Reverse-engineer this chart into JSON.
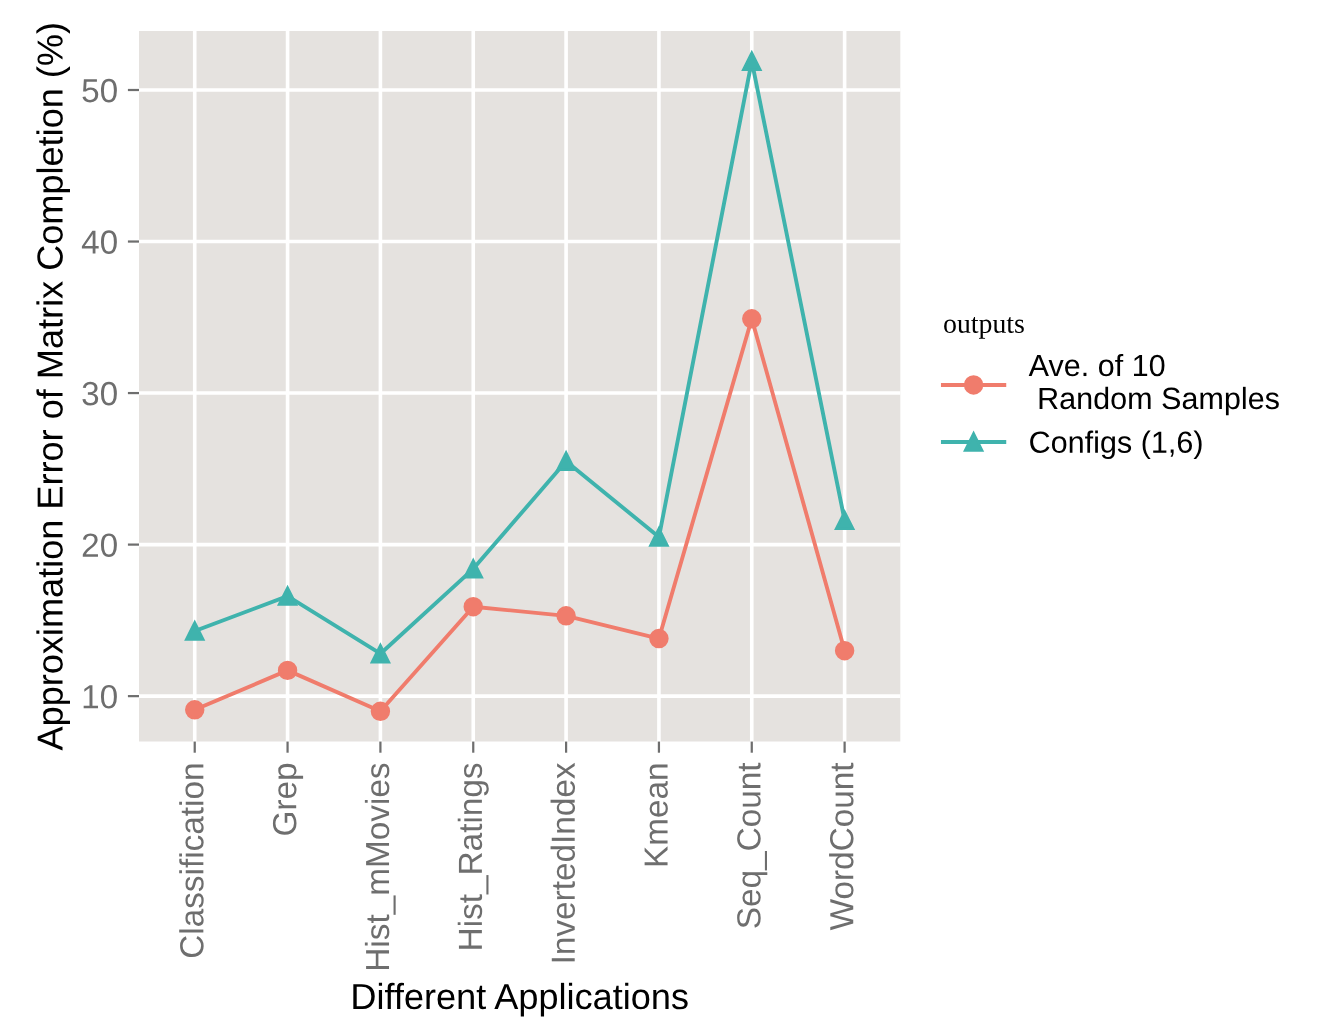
{
  "chart_data": {
    "type": "line",
    "xlabel": "Different Applications",
    "ylabel": "Approximation Error of Matrix Completion (%)",
    "legend_title": "outputs",
    "categories": [
      "Classification",
      "Grep",
      "Hist_mMovies",
      "Hist_Ratings",
      "InvertedIndex",
      "Kmean",
      "Seq_Count",
      "WordCount"
    ],
    "series": [
      {
        "name": "Ave. of 10\n Random Samples",
        "color": "#f07c6c",
        "marker": "circle",
        "values": [
          9.1,
          11.7,
          9.0,
          15.9,
          15.3,
          13.8,
          34.9,
          13.0
        ]
      },
      {
        "name": "Configs (1,6)",
        "color": "#3fb3ad",
        "marker": "triangle",
        "values": [
          14.3,
          16.6,
          12.8,
          18.4,
          25.5,
          20.5,
          51.9,
          21.6
        ]
      }
    ],
    "ylim": [
      7.0,
      53.9
    ],
    "yticks": [
      10,
      20,
      30,
      40,
      50
    ],
    "grid": true,
    "legend": "right"
  }
}
